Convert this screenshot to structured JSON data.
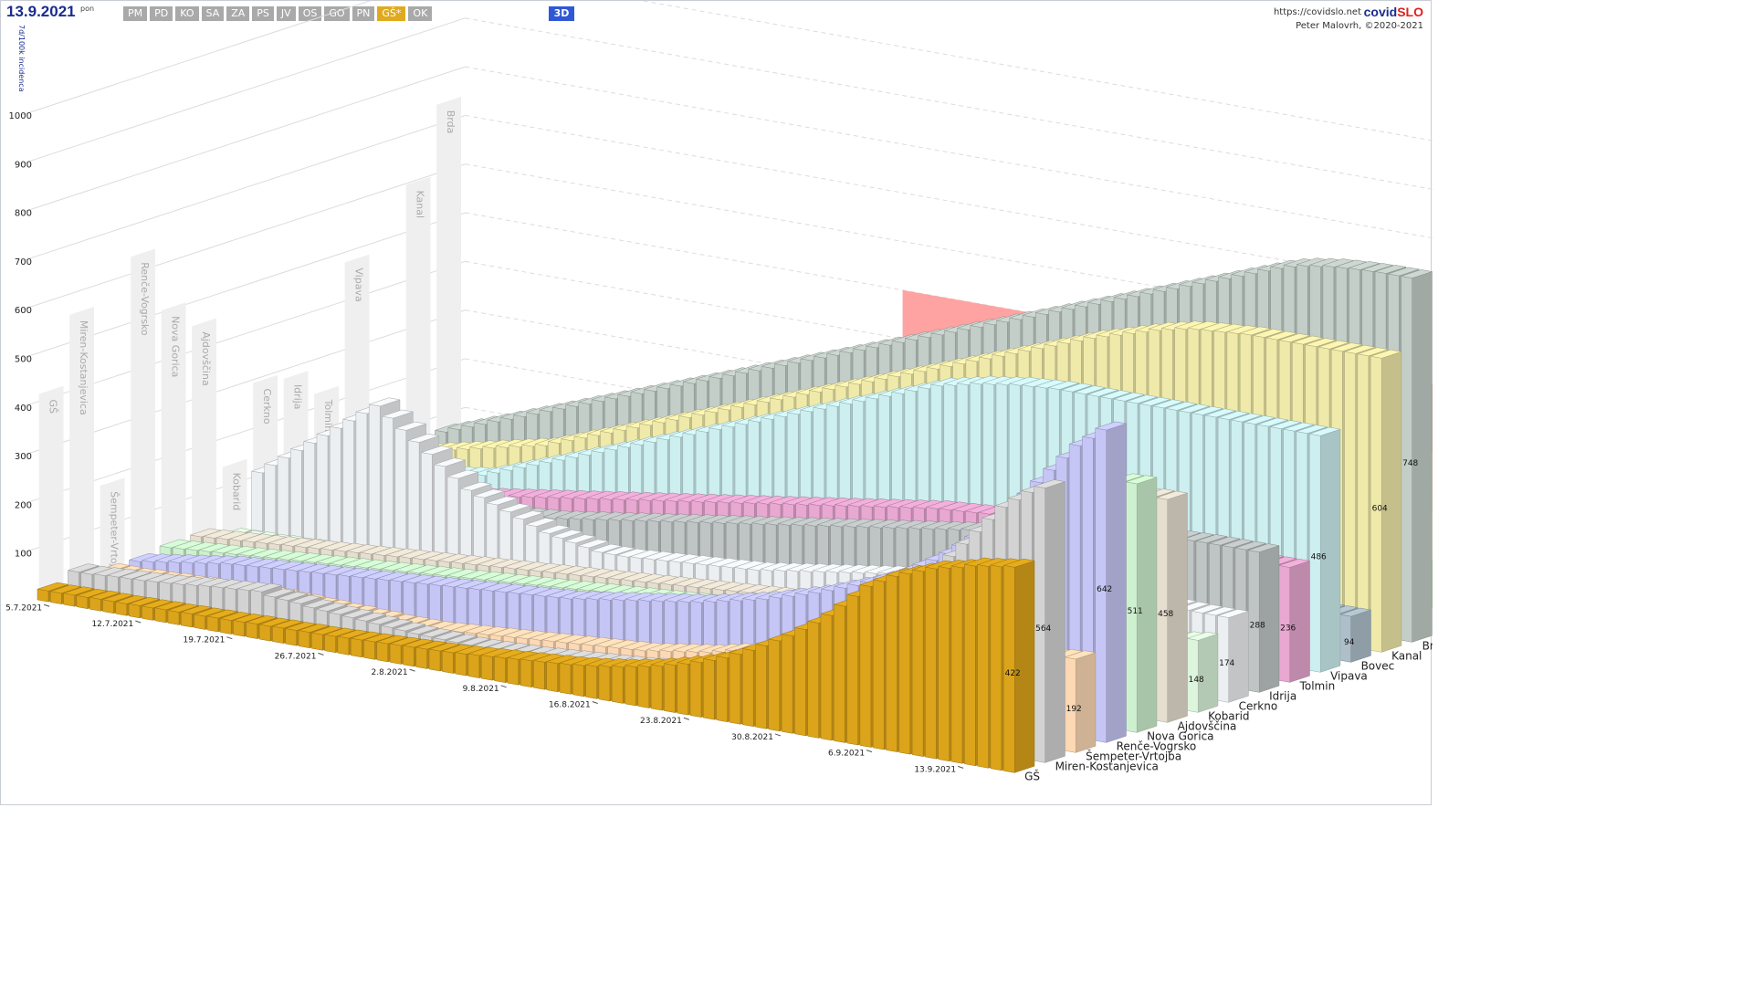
{
  "header": {
    "date": "13.9.2021",
    "weekday": "pon",
    "tabs": [
      "PM",
      "PD",
      "KO",
      "SA",
      "ZA",
      "PS",
      "JV",
      "OS",
      "GO",
      "PN",
      "GŠ*",
      "OK"
    ],
    "active_tab": "GŠ*",
    "view_3d": "3D",
    "site": "https://covidslo.net",
    "brand_a": "covid",
    "brand_b": "SLO",
    "copyright": "Peter Malovrh, ©2020-2021"
  },
  "colors": {
    "accent": "#1a2d8f",
    "active_tab": "#e0aa1f",
    "button_3d": "#2f57d6",
    "band_red": "#ff9d9d",
    "band_orange": "#fed69a",
    "band_yellow": "#fefe9c",
    "band_green": "#9fcc98"
  },
  "chart_data": {
    "type": "bar",
    "ylabel": "7d/100k incidenca",
    "yticks": [
      100,
      200,
      300,
      400,
      500,
      600,
      700,
      800,
      900,
      1000
    ],
    "ylim": [
      0,
      1100
    ],
    "date_labels": [
      "5.7.2021",
      "12.7.2021",
      "19.7.2021",
      "26.7.2021",
      "2.8.2021",
      "9.8.2021",
      "16.8.2021",
      "23.8.2021",
      "30.8.2021",
      "6.9.2021",
      "13.9.2021"
    ],
    "thresholds": [
      40,
      140,
      240,
      360,
      500,
      600
    ],
    "series": [
      {
        "name": "GŠ",
        "color": "#dba41a",
        "values": [
          22,
          22,
          23,
          23,
          24,
          24,
          24,
          25,
          25,
          26,
          26,
          27,
          27,
          28,
          28,
          29,
          30,
          30,
          31,
          31,
          32,
          32,
          33,
          34,
          35,
          36,
          37,
          38,
          39,
          40,
          41,
          42,
          44,
          46,
          48,
          50,
          52,
          54,
          56,
          58,
          60,
          63,
          66,
          70,
          74,
          79,
          84,
          90,
          97,
          104,
          112,
          121,
          131,
          143,
          156,
          170,
          185,
          200,
          218,
          236,
          256,
          280,
          305,
          330,
          345,
          360,
          370,
          380,
          390,
          396,
          402,
          410,
          414,
          418,
          422
        ]
      },
      {
        "name": "Miren-Kostanjevica",
        "color": "#d3d3d3",
        "values": [
          40,
          40,
          42,
          44,
          45,
          46,
          48,
          50,
          52,
          55,
          58,
          60,
          62,
          64,
          66,
          60,
          58,
          56,
          52,
          50,
          48,
          46,
          44,
          42,
          40,
          38,
          36,
          35,
          34,
          33,
          32,
          32,
          33,
          34,
          35,
          36,
          38,
          40,
          42,
          44,
          46,
          48,
          50,
          52,
          55,
          58,
          62,
          66,
          70,
          75,
          80,
          86,
          92,
          100,
          110,
          120,
          132,
          145,
          160,
          176,
          195,
          215,
          240,
          270,
          300,
          330,
          360,
          390,
          420,
          450,
          480,
          510,
          530,
          550,
          564
        ]
      },
      {
        "name": "Šempeter-Vrtojba",
        "color": "#fdd8b4",
        "values": [
          20,
          20,
          20,
          22,
          22,
          24,
          24,
          26,
          26,
          28,
          28,
          30,
          30,
          30,
          28,
          28,
          26,
          26,
          24,
          24,
          22,
          22,
          20,
          20,
          20,
          20,
          22,
          24,
          26,
          28,
          30,
          32,
          34,
          36,
          38,
          40,
          42,
          44,
          46,
          48,
          50,
          52,
          56,
          60,
          64,
          68,
          72,
          78,
          84,
          90,
          96,
          100,
          104,
          108,
          112,
          116,
          120,
          124,
          128,
          132,
          136,
          140,
          144,
          148,
          152,
          156,
          160,
          164,
          170,
          175,
          180,
          184,
          188,
          190,
          192
        ]
      },
      {
        "name": "Renče-Vogrsko",
        "color": "#c5c6f5",
        "values": [
          20,
          24,
          28,
          32,
          36,
          40,
          44,
          48,
          50,
          52,
          54,
          56,
          58,
          60,
          62,
          64,
          66,
          68,
          70,
          72,
          74,
          76,
          78,
          80,
          82,
          84,
          86,
          88,
          90,
          92,
          94,
          96,
          98,
          100,
          104,
          108,
          112,
          116,
          120,
          124,
          128,
          132,
          136,
          140,
          146,
          152,
          158,
          164,
          170,
          178,
          186,
          194,
          202,
          212,
          222,
          232,
          242,
          254,
          266,
          280,
          296,
          312,
          330,
          350,
          372,
          396,
          420,
          450,
          480,
          510,
          540,
          570,
          600,
          620,
          642
        ]
      },
      {
        "name": "Nova Gorica",
        "color": "#cdf0ce",
        "values": [
          28,
          30,
          32,
          34,
          36,
          38,
          40,
          42,
          44,
          46,
          48,
          50,
          52,
          54,
          56,
          58,
          60,
          62,
          64,
          66,
          68,
          70,
          72,
          74,
          76,
          78,
          80,
          82,
          84,
          86,
          88,
          90,
          92,
          94,
          96,
          98,
          100,
          102,
          104,
          106,
          108,
          110,
          112,
          116,
          120,
          124,
          128,
          132,
          138,
          144,
          150,
          156,
          162,
          170,
          178,
          186,
          194,
          204,
          214,
          226,
          240,
          256,
          274,
          294,
          316,
          340,
          366,
          394,
          420,
          446,
          470,
          490,
          504,
          510,
          511
        ]
      },
      {
        "name": "Ajdovščina",
        "color": "#e6dfd0",
        "values": [
          30,
          32,
          34,
          36,
          38,
          40,
          42,
          44,
          46,
          48,
          50,
          52,
          54,
          56,
          58,
          60,
          62,
          64,
          66,
          68,
          70,
          72,
          74,
          76,
          78,
          80,
          82,
          84,
          86,
          88,
          90,
          92,
          94,
          96,
          98,
          100,
          102,
          104,
          106,
          108,
          110,
          112,
          114,
          116,
          118,
          120,
          124,
          128,
          132,
          136,
          140,
          146,
          152,
          158,
          166,
          174,
          184,
          194,
          206,
          220,
          236,
          254,
          274,
          296,
          320,
          346,
          372,
          398,
          420,
          436,
          448,
          454,
          456,
          458,
          458
        ]
      },
      {
        "name": "Kobarid",
        "color": "#dcf5dc",
        "values": [
          10,
          10,
          12,
          12,
          14,
          14,
          16,
          16,
          18,
          18,
          20,
          20,
          22,
          22,
          24,
          24,
          26,
          26,
          28,
          28,
          30,
          30,
          32,
          32,
          34,
          34,
          36,
          36,
          38,
          38,
          40,
          40,
          42,
          42,
          44,
          44,
          46,
          46,
          48,
          48,
          50,
          50,
          52,
          52,
          54,
          54,
          56,
          58,
          60,
          62,
          64,
          66,
          68,
          70,
          72,
          74,
          76,
          80,
          84,
          88,
          92,
          96,
          100,
          104,
          108,
          112,
          116,
          120,
          124,
          128,
          132,
          136,
          140,
          144,
          148
        ]
      },
      {
        "name": "Cerkno",
        "color": "#eceff2",
        "values": [
          120,
          140,
          160,
          180,
          200,
          220,
          240,
          260,
          280,
          300,
          280,
          260,
          240,
          220,
          200,
          180,
          160,
          150,
          140,
          130,
          120,
          110,
          100,
          95,
          90,
          85,
          80,
          80,
          80,
          82,
          84,
          86,
          88,
          90,
          92,
          94,
          96,
          98,
          100,
          104,
          108,
          112,
          116,
          120,
          124,
          128,
          132,
          136,
          140,
          144,
          148,
          152,
          156,
          160,
          164,
          168,
          172,
          176,
          180,
          184,
          188,
          192,
          196,
          200,
          196,
          192,
          188,
          184,
          180,
          178,
          176,
          175,
          174,
          174,
          174
        ]
      },
      {
        "name": "Idrija",
        "color": "#bfc5c5",
        "values": [
          60,
          62,
          64,
          66,
          68,
          70,
          72,
          74,
          76,
          78,
          80,
          82,
          84,
          86,
          88,
          90,
          92,
          94,
          96,
          98,
          100,
          104,
          108,
          112,
          116,
          120,
          124,
          128,
          132,
          136,
          140,
          144,
          148,
          152,
          156,
          160,
          164,
          168,
          172,
          176,
          180,
          184,
          188,
          192,
          196,
          200,
          204,
          208,
          212,
          216,
          220,
          224,
          228,
          232,
          236,
          240,
          244,
          248,
          252,
          256,
          260,
          264,
          268,
          272,
          276,
          280,
          282,
          284,
          286,
          287,
          288,
          288,
          288,
          288,
          288
        ]
      },
      {
        "name": "Tolmin",
        "color": "#e8a8d2",
        "values": [
          40,
          44,
          48,
          52,
          56,
          60,
          64,
          68,
          72,
          76,
          80,
          84,
          88,
          92,
          96,
          100,
          104,
          108,
          112,
          116,
          120,
          124,
          128,
          132,
          136,
          140,
          144,
          148,
          152,
          156,
          160,
          164,
          168,
          172,
          176,
          180,
          184,
          188,
          192,
          196,
          200,
          204,
          208,
          212,
          216,
          220,
          224,
          228,
          230,
          232,
          234,
          236,
          236,
          236,
          236,
          236,
          236,
          236,
          236,
          236,
          236,
          236,
          236,
          236,
          236,
          236,
          236,
          236,
          236,
          236,
          236,
          236,
          236,
          236,
          236
        ]
      },
      {
        "name": "Vipava",
        "color": "#cdeff0",
        "values": [
          60,
          64,
          68,
          72,
          76,
          80,
          84,
          88,
          92,
          96,
          100,
          110,
          120,
          130,
          140,
          150,
          160,
          170,
          180,
          190,
          200,
          210,
          220,
          230,
          240,
          250,
          260,
          270,
          280,
          290,
          300,
          310,
          320,
          330,
          340,
          350,
          360,
          370,
          380,
          390,
          400,
          410,
          420,
          430,
          440,
          450,
          456,
          462,
          468,
          472,
          476,
          480,
          482,
          484,
          486,
          486,
          486,
          486,
          486,
          486,
          486,
          486,
          486,
          486,
          486,
          486,
          486,
          486,
          486,
          486,
          486,
          486,
          486,
          486,
          486
        ]
      },
      {
        "name": "Bovec",
        "color": "#aebfca",
        "values": [
          20,
          22,
          24,
          26,
          28,
          30,
          32,
          34,
          36,
          38,
          40,
          42,
          44,
          46,
          48,
          50,
          52,
          54,
          56,
          58,
          60,
          62,
          64,
          66,
          68,
          70,
          72,
          74,
          76,
          78,
          80,
          82,
          84,
          86,
          88,
          90,
          92,
          94,
          94,
          94,
          94,
          94,
          94,
          94,
          94,
          94,
          94,
          94,
          94,
          94,
          94,
          94,
          94,
          94,
          94,
          94,
          94,
          94,
          94,
          94,
          94,
          94,
          94,
          94,
          94,
          94,
          94,
          94,
          94,
          94,
          94,
          94,
          94,
          94,
          94
        ]
      },
      {
        "name": "Kanal",
        "color": "#f0eaaa",
        "values": [
          60,
          66,
          72,
          78,
          84,
          90,
          96,
          102,
          108,
          114,
          120,
          130,
          140,
          150,
          160,
          170,
          180,
          190,
          200,
          210,
          220,
          230,
          240,
          250,
          260,
          270,
          280,
          290,
          300,
          310,
          320,
          330,
          340,
          350,
          360,
          370,
          380,
          390,
          400,
          410,
          420,
          430,
          440,
          450,
          460,
          470,
          480,
          490,
          500,
          510,
          520,
          530,
          540,
          548,
          556,
          564,
          572,
          580,
          586,
          592,
          596,
          598,
          600,
          602,
          604,
          604,
          604,
          604,
          604,
          604,
          604,
          604,
          604,
          604,
          604
        ]
      },
      {
        "name": "Brda",
        "color": "#c3cec8",
        "values": [
          80,
          90,
          100,
          110,
          120,
          130,
          140,
          150,
          160,
          170,
          180,
          190,
          200,
          210,
          220,
          230,
          240,
          250,
          260,
          270,
          280,
          290,
          300,
          310,
          320,
          330,
          340,
          350,
          360,
          370,
          380,
          390,
          400,
          410,
          420,
          430,
          440,
          450,
          460,
          470,
          480,
          490,
          500,
          510,
          520,
          530,
          540,
          550,
          560,
          570,
          580,
          590,
          600,
          610,
          620,
          630,
          640,
          650,
          660,
          670,
          680,
          690,
          700,
          710,
          720,
          728,
          734,
          738,
          742,
          744,
          746,
          747,
          748,
          748,
          748
        ]
      }
    ]
  }
}
